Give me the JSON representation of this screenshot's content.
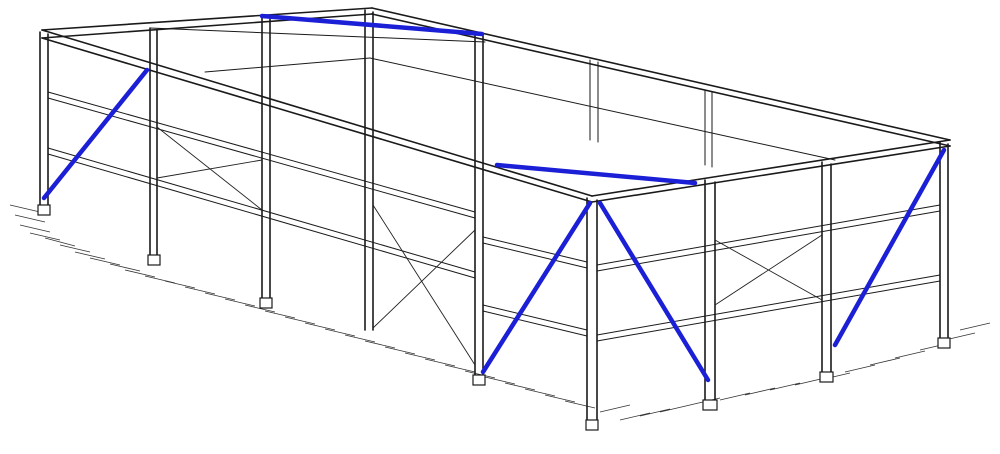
{
  "diagram": {
    "subject": "braced-steel-frame-building",
    "colors": {
      "frame": "#1a1a1a",
      "bracing": "#1b1fd6",
      "background": "#ffffff"
    }
  }
}
